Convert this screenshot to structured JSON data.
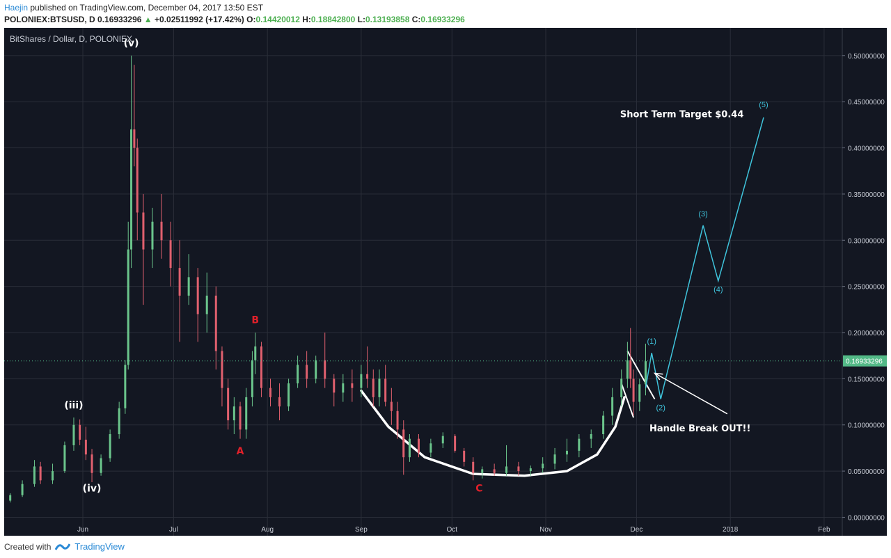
{
  "header": {
    "author": "Haejin",
    "published_text": " published on TradingView.com, December 04, 2017 13:50 EST"
  },
  "ohlc": {
    "symbol": "POLONIEX:BTSUSD, D",
    "last": "0.16933296",
    "change": "+0.02511992 (+17.42%)",
    "o_label": "O:",
    "o": "0.14420012",
    "h_label": "H:",
    "h": "0.18842800",
    "l_label": "L:",
    "l": "0.13193858",
    "c_label": "C:",
    "c": "0.16933296"
  },
  "footer": {
    "created_with": "Created with",
    "brand": "TradingView"
  },
  "colors": {
    "background": "#131722",
    "grid": "#2a2e39",
    "up": "#6bc58c",
    "down": "#e0606e",
    "price_tag": "#53b987",
    "projection": "#3fc4dc",
    "label_red": "#e0202a",
    "white": "#ffffff"
  },
  "chart_data": {
    "type": "candlestick",
    "title": "BitShares / Dollar, D, POLONIEX",
    "current_price": 0.16933296,
    "current_price_label": "0.16933296",
    "y_range": [
      -0.02,
      0.53
    ],
    "y_ticks": [
      "0.00000000",
      "0.05000000",
      "0.10000000",
      "0.15000000",
      "0.20000000",
      "0.25000000",
      "0.30000000",
      "0.35000000",
      "0.40000000",
      "0.45000000",
      "0.50000000"
    ],
    "x_ticks": [
      "Jun",
      "Jul",
      "Aug",
      "Sep",
      "Oct",
      "Nov",
      "Dec",
      "2018",
      "Feb"
    ],
    "x_range": [
      "2017-05-06",
      "2018-02-07"
    ],
    "candles": [
      {
        "date": "2017-05-08",
        "o": 0.018,
        "h": 0.026,
        "l": 0.016,
        "c": 0.024
      },
      {
        "date": "2017-05-12",
        "o": 0.024,
        "h": 0.04,
        "l": 0.022,
        "c": 0.036
      },
      {
        "date": "2017-05-16",
        "o": 0.036,
        "h": 0.062,
        "l": 0.033,
        "c": 0.055
      },
      {
        "date": "2017-05-18",
        "o": 0.055,
        "h": 0.06,
        "l": 0.036,
        "c": 0.04
      },
      {
        "date": "2017-05-22",
        "o": 0.04,
        "h": 0.058,
        "l": 0.036,
        "c": 0.05
      },
      {
        "date": "2017-05-26",
        "o": 0.05,
        "h": 0.082,
        "l": 0.048,
        "c": 0.078
      },
      {
        "date": "2017-05-29",
        "o": 0.078,
        "h": 0.108,
        "l": 0.072,
        "c": 0.1
      },
      {
        "date": "2017-05-31",
        "o": 0.1,
        "h": 0.106,
        "l": 0.078,
        "c": 0.084
      },
      {
        "date": "2017-06-02",
        "o": 0.084,
        "h": 0.098,
        "l": 0.062,
        "c": 0.068
      },
      {
        "date": "2017-06-04",
        "o": 0.068,
        "h": 0.074,
        "l": 0.038,
        "c": 0.048
      },
      {
        "date": "2017-06-07",
        "o": 0.048,
        "h": 0.068,
        "l": 0.045,
        "c": 0.064
      },
      {
        "date": "2017-06-10",
        "o": 0.064,
        "h": 0.095,
        "l": 0.06,
        "c": 0.09
      },
      {
        "date": "2017-06-13",
        "o": 0.09,
        "h": 0.125,
        "l": 0.085,
        "c": 0.118
      },
      {
        "date": "2017-06-15",
        "o": 0.118,
        "h": 0.17,
        "l": 0.112,
        "c": 0.165
      },
      {
        "date": "2017-06-16",
        "o": 0.165,
        "h": 0.32,
        "l": 0.16,
        "c": 0.29
      },
      {
        "date": "2017-06-17",
        "o": 0.29,
        "h": 0.5,
        "l": 0.27,
        "c": 0.42
      },
      {
        "date": "2017-06-18",
        "o": 0.42,
        "h": 0.49,
        "l": 0.38,
        "c": 0.4
      },
      {
        "date": "2017-06-19",
        "o": 0.4,
        "h": 0.41,
        "l": 0.3,
        "c": 0.33
      },
      {
        "date": "2017-06-21",
        "o": 0.33,
        "h": 0.35,
        "l": 0.23,
        "c": 0.29
      },
      {
        "date": "2017-06-24",
        "o": 0.29,
        "h": 0.335,
        "l": 0.27,
        "c": 0.32
      },
      {
        "date": "2017-06-27",
        "o": 0.32,
        "h": 0.35,
        "l": 0.28,
        "c": 0.3
      },
      {
        "date": "2017-06-30",
        "o": 0.3,
        "h": 0.32,
        "l": 0.25,
        "c": 0.27
      },
      {
        "date": "2017-07-03",
        "o": 0.27,
        "h": 0.3,
        "l": 0.19,
        "c": 0.24
      },
      {
        "date": "2017-07-06",
        "o": 0.24,
        "h": 0.285,
        "l": 0.23,
        "c": 0.26
      },
      {
        "date": "2017-07-09",
        "o": 0.26,
        "h": 0.27,
        "l": 0.19,
        "c": 0.22
      },
      {
        "date": "2017-07-12",
        "o": 0.22,
        "h": 0.265,
        "l": 0.2,
        "c": 0.24
      },
      {
        "date": "2017-07-15",
        "o": 0.24,
        "h": 0.25,
        "l": 0.16,
        "c": 0.18
      },
      {
        "date": "2017-07-17",
        "o": 0.18,
        "h": 0.185,
        "l": 0.12,
        "c": 0.14
      },
      {
        "date": "2017-07-19",
        "o": 0.14,
        "h": 0.15,
        "l": 0.095,
        "c": 0.105
      },
      {
        "date": "2017-07-21",
        "o": 0.105,
        "h": 0.13,
        "l": 0.09,
        "c": 0.12
      },
      {
        "date": "2017-07-23",
        "o": 0.12,
        "h": 0.125,
        "l": 0.085,
        "c": 0.095
      },
      {
        "date": "2017-07-25",
        "o": 0.095,
        "h": 0.14,
        "l": 0.085,
        "c": 0.13
      },
      {
        "date": "2017-07-27",
        "o": 0.13,
        "h": 0.18,
        "l": 0.12,
        "c": 0.17
      },
      {
        "date": "2017-07-28",
        "o": 0.17,
        "h": 0.2,
        "l": 0.155,
        "c": 0.185
      },
      {
        "date": "2017-07-30",
        "o": 0.185,
        "h": 0.19,
        "l": 0.13,
        "c": 0.14
      },
      {
        "date": "2017-08-02",
        "o": 0.14,
        "h": 0.15,
        "l": 0.12,
        "c": 0.13
      },
      {
        "date": "2017-08-05",
        "o": 0.13,
        "h": 0.145,
        "l": 0.105,
        "c": 0.12
      },
      {
        "date": "2017-08-08",
        "o": 0.12,
        "h": 0.15,
        "l": 0.115,
        "c": 0.145
      },
      {
        "date": "2017-08-11",
        "o": 0.145,
        "h": 0.175,
        "l": 0.14,
        "c": 0.165
      },
      {
        "date": "2017-08-14",
        "o": 0.165,
        "h": 0.18,
        "l": 0.14,
        "c": 0.15
      },
      {
        "date": "2017-08-17",
        "o": 0.15,
        "h": 0.175,
        "l": 0.145,
        "c": 0.17
      },
      {
        "date": "2017-08-20",
        "o": 0.17,
        "h": 0.2,
        "l": 0.14,
        "c": 0.15
      },
      {
        "date": "2017-08-23",
        "o": 0.15,
        "h": 0.155,
        "l": 0.12,
        "c": 0.135
      },
      {
        "date": "2017-08-26",
        "o": 0.135,
        "h": 0.155,
        "l": 0.125,
        "c": 0.145
      },
      {
        "date": "2017-08-29",
        "o": 0.145,
        "h": 0.16,
        "l": 0.125,
        "c": 0.14
      },
      {
        "date": "2017-09-01",
        "o": 0.14,
        "h": 0.165,
        "l": 0.13,
        "c": 0.155
      },
      {
        "date": "2017-09-03",
        "o": 0.155,
        "h": 0.185,
        "l": 0.14,
        "c": 0.15
      },
      {
        "date": "2017-09-05",
        "o": 0.15,
        "h": 0.16,
        "l": 0.12,
        "c": 0.13
      },
      {
        "date": "2017-09-07",
        "o": 0.13,
        "h": 0.16,
        "l": 0.12,
        "c": 0.15
      },
      {
        "date": "2017-09-09",
        "o": 0.15,
        "h": 0.165,
        "l": 0.12,
        "c": 0.125
      },
      {
        "date": "2017-09-11",
        "o": 0.125,
        "h": 0.14,
        "l": 0.1,
        "c": 0.115
      },
      {
        "date": "2017-09-13",
        "o": 0.115,
        "h": 0.125,
        "l": 0.085,
        "c": 0.095
      },
      {
        "date": "2017-09-15",
        "o": 0.095,
        "h": 0.105,
        "l": 0.046,
        "c": 0.065
      },
      {
        "date": "2017-09-17",
        "o": 0.065,
        "h": 0.09,
        "l": 0.06,
        "c": 0.085
      },
      {
        "date": "2017-09-20",
        "o": 0.085,
        "h": 0.09,
        "l": 0.065,
        "c": 0.07
      },
      {
        "date": "2017-09-24",
        "o": 0.07,
        "h": 0.085,
        "l": 0.065,
        "c": 0.08
      },
      {
        "date": "2017-09-28",
        "o": 0.08,
        "h": 0.092,
        "l": 0.075,
        "c": 0.088
      },
      {
        "date": "2017-10-02",
        "o": 0.088,
        "h": 0.09,
        "l": 0.07,
        "c": 0.072
      },
      {
        "date": "2017-10-05",
        "o": 0.072,
        "h": 0.075,
        "l": 0.055,
        "c": 0.06
      },
      {
        "date": "2017-10-08",
        "o": 0.06,
        "h": 0.065,
        "l": 0.04,
        "c": 0.048
      },
      {
        "date": "2017-10-11",
        "o": 0.048,
        "h": 0.055,
        "l": 0.042,
        "c": 0.052
      },
      {
        "date": "2017-10-15",
        "o": 0.052,
        "h": 0.058,
        "l": 0.045,
        "c": 0.048
      },
      {
        "date": "2017-10-19",
        "o": 0.048,
        "h": 0.078,
        "l": 0.045,
        "c": 0.055
      },
      {
        "date": "2017-10-23",
        "o": 0.055,
        "h": 0.06,
        "l": 0.045,
        "c": 0.05
      },
      {
        "date": "2017-10-27",
        "o": 0.05,
        "h": 0.056,
        "l": 0.045,
        "c": 0.053
      },
      {
        "date": "2017-10-31",
        "o": 0.053,
        "h": 0.065,
        "l": 0.048,
        "c": 0.058
      },
      {
        "date": "2017-11-04",
        "o": 0.058,
        "h": 0.075,
        "l": 0.052,
        "c": 0.068
      },
      {
        "date": "2017-11-08",
        "o": 0.068,
        "h": 0.085,
        "l": 0.06,
        "c": 0.072
      },
      {
        "date": "2017-11-12",
        "o": 0.072,
        "h": 0.09,
        "l": 0.065,
        "c": 0.085
      },
      {
        "date": "2017-11-16",
        "o": 0.085,
        "h": 0.095,
        "l": 0.075,
        "c": 0.09
      },
      {
        "date": "2017-11-20",
        "o": 0.09,
        "h": 0.115,
        "l": 0.085,
        "c": 0.11
      },
      {
        "date": "2017-11-23",
        "o": 0.11,
        "h": 0.14,
        "l": 0.1,
        "c": 0.13
      },
      {
        "date": "2017-11-26",
        "o": 0.13,
        "h": 0.16,
        "l": 0.12,
        "c": 0.15
      },
      {
        "date": "2017-11-28",
        "o": 0.15,
        "h": 0.19,
        "l": 0.14,
        "c": 0.17
      },
      {
        "date": "2017-11-29",
        "o": 0.17,
        "h": 0.205,
        "l": 0.14,
        "c": 0.15
      },
      {
        "date": "2017-11-30",
        "o": 0.15,
        "h": 0.16,
        "l": 0.11,
        "c": 0.125
      },
      {
        "date": "2017-12-02",
        "o": 0.125,
        "h": 0.15,
        "l": 0.115,
        "c": 0.144
      },
      {
        "date": "2017-12-04",
        "o": 0.144,
        "h": 0.188,
        "l": 0.132,
        "c": 0.169
      }
    ],
    "projection_path": [
      {
        "date": "2017-12-04",
        "v": 0.14
      },
      {
        "date": "2017-12-06",
        "v": 0.178
      },
      {
        "date": "2017-12-09",
        "v": 0.128
      },
      {
        "date": "2017-12-23",
        "v": 0.316
      },
      {
        "date": "2017-12-28",
        "v": 0.256
      },
      {
        "date": "2018-01-12",
        "v": 0.433
      }
    ],
    "wave_labels": [
      {
        "text": "(1)",
        "date": "2017-12-06",
        "v": 0.188
      },
      {
        "text": "(2)",
        "date": "2017-12-09",
        "v": 0.116
      },
      {
        "text": "(3)",
        "date": "2017-12-23",
        "v": 0.326
      },
      {
        "text": "(4)",
        "date": "2017-12-28",
        "v": 0.244
      },
      {
        "text": "(5)",
        "date": "2018-01-12",
        "v": 0.444
      }
    ],
    "annotations": [
      {
        "text": "(v)",
        "date": "2017-06-17",
        "v": 0.51,
        "color": "white"
      },
      {
        "text": "(iii)",
        "date": "2017-05-29",
        "v": 0.118,
        "color": "white"
      },
      {
        "text": "(iv)",
        "date": "2017-06-04",
        "v": 0.028,
        "color": "white"
      },
      {
        "text": "A",
        "date": "2017-07-23",
        "v": 0.068,
        "color": "red"
      },
      {
        "text": "B",
        "date": "2017-07-28",
        "v": 0.21,
        "color": "red"
      },
      {
        "text": "C",
        "date": "2017-10-10",
        "v": 0.028,
        "color": "red"
      },
      {
        "text": "Short Term Target $0.44",
        "date": "2017-12-16",
        "v": 0.433,
        "color": "white"
      },
      {
        "text": "Handle Break OUT!!",
        "date": "2017-12-22",
        "v": 0.093,
        "color": "white"
      }
    ]
  }
}
